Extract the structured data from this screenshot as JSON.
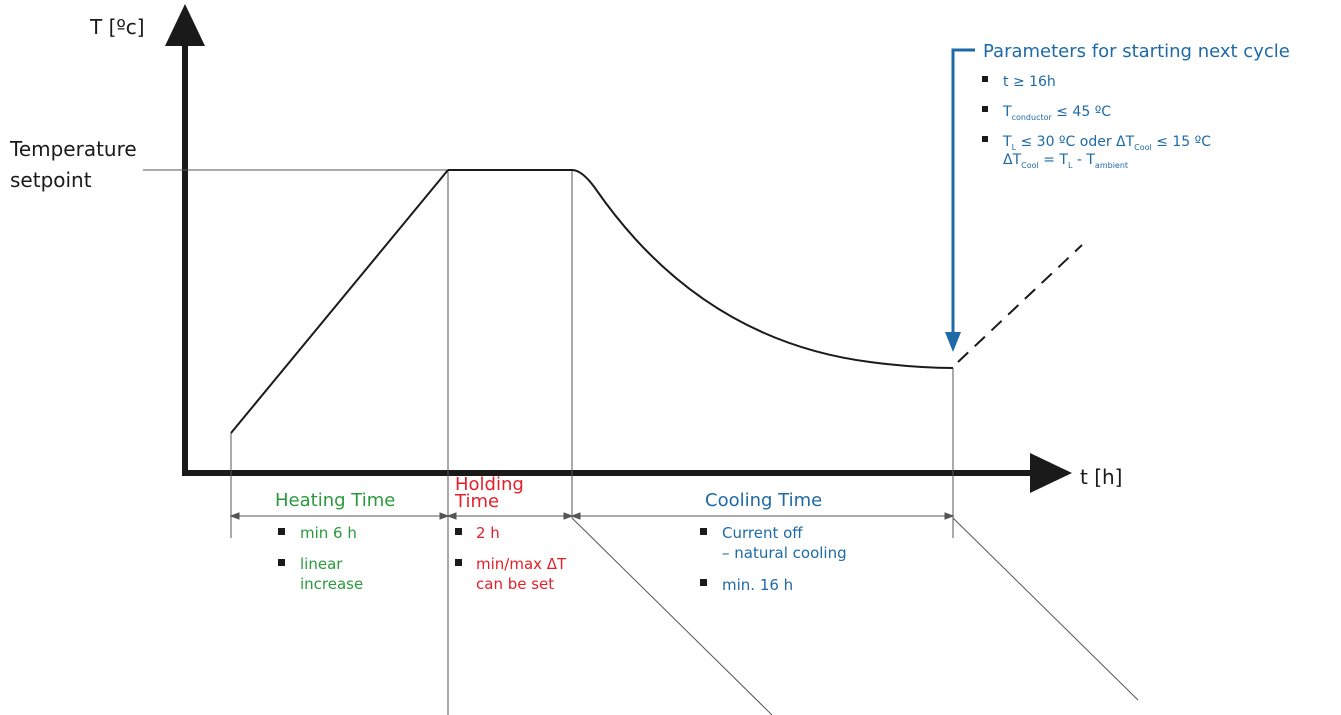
{
  "axes": {
    "y_label": "T [ºc]",
    "x_label": "t [h]"
  },
  "setpoint_label": [
    "Temperature",
    "setpoint"
  ],
  "phases": {
    "heating": {
      "title": "Heating Time",
      "bullets": [
        [
          "min 6 h"
        ],
        [
          "linear",
          "increase"
        ]
      ]
    },
    "holding": {
      "title": [
        "Holding",
        "Time"
      ],
      "bullets": [
        [
          "2 h"
        ],
        [
          "min/max ΔT",
          "can be set"
        ]
      ]
    },
    "cooling": {
      "title": "Cooling Time",
      "bullets": [
        [
          "Current off",
          "– natural cooling"
        ],
        [
          "min. 16 h"
        ]
      ]
    }
  },
  "next_cycle": {
    "title": "Parameters for starting next cycle",
    "items": {
      "time": "t ≥ 16h",
      "conductor": {
        "symbol": "T",
        "subscript": "conductor",
        "condition": " ≤ 45 ºC"
      },
      "alt": {
        "symbol1": "T",
        "sub1": "L",
        "text1": " ≤ 30 ºC oder ΔT",
        "sub2": "Cool",
        "text2": " ≤ 15 ºC"
      },
      "formula": {
        "lhs": "ΔT",
        "lhs_sub": "Cool",
        "eq": " = T",
        "sub_l": "L",
        "minus": " - T",
        "sub_amb": "ambient"
      }
    }
  },
  "colors": {
    "heating": "#2a9a3c",
    "holding": "#e5202b",
    "cooling": "#1e6aa8",
    "line": "#1a1a1a",
    "thin": "#555555"
  }
}
